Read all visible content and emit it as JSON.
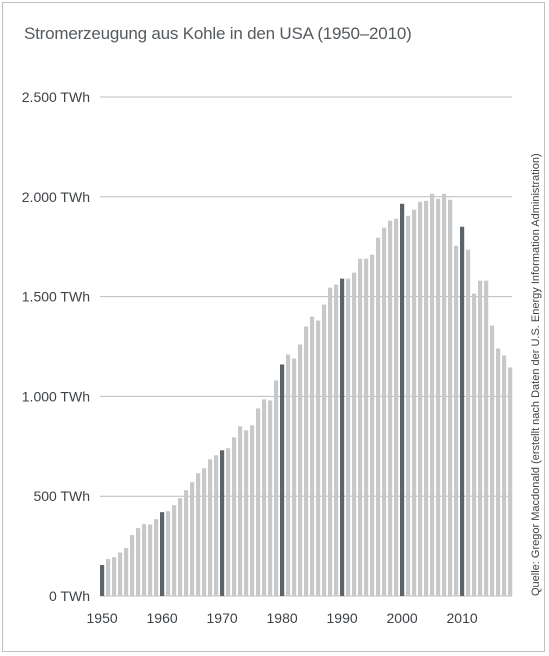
{
  "chart_data": {
    "type": "bar",
    "title": "Stromerzeugung aus Kohle in den USA (1950–2010)",
    "source": "Quelle: Gregor Macdonald (erstellt nach Daten der U.S. Energy Information Administration)",
    "x_start": 1950,
    "x_end": 2018,
    "ylim": [
      0,
      2500
    ],
    "y_ticks": [
      {
        "value": 0,
        "label": "0 TWh"
      },
      {
        "value": 500,
        "label": "500 TWh"
      },
      {
        "value": 1000,
        "label": "1.000 TWh"
      },
      {
        "value": 1500,
        "label": "1.500 TWh"
      },
      {
        "value": 2000,
        "label": "2.000 TWh"
      },
      {
        "value": 2500,
        "label": "2.500 TWh"
      }
    ],
    "x_ticks": [
      "1950",
      "1960",
      "1970",
      "1980",
      "1990",
      "2000",
      "2010"
    ],
    "highlight_years": [
      1950,
      1960,
      1970,
      1980,
      1990,
      2000,
      2010
    ],
    "grid": true,
    "values": [
      155,
      185,
      195,
      218,
      240,
      305,
      340,
      360,
      358,
      385,
      420,
      425,
      455,
      490,
      530,
      570,
      615,
      640,
      685,
      705,
      730,
      740,
      795,
      850,
      830,
      855,
      940,
      985,
      980,
      1080,
      1160,
      1210,
      1190,
      1260,
      1350,
      1400,
      1380,
      1460,
      1545,
      1560,
      1590,
      1590,
      1620,
      1690,
      1690,
      1710,
      1795,
      1845,
      1880,
      1890,
      1965,
      1905,
      1935,
      1975,
      1980,
      2015,
      1990,
      2015,
      1985,
      1755,
      1850,
      1735,
      1515,
      1580,
      1580,
      1355,
      1240,
      1205,
      1145
    ]
  },
  "colors": {
    "bar": "#c6c8ca",
    "bar_highlight": "#5c6369",
    "grid": "#bcbcbc",
    "tick_text": "#3d4246",
    "title_text": "#555a5e"
  }
}
